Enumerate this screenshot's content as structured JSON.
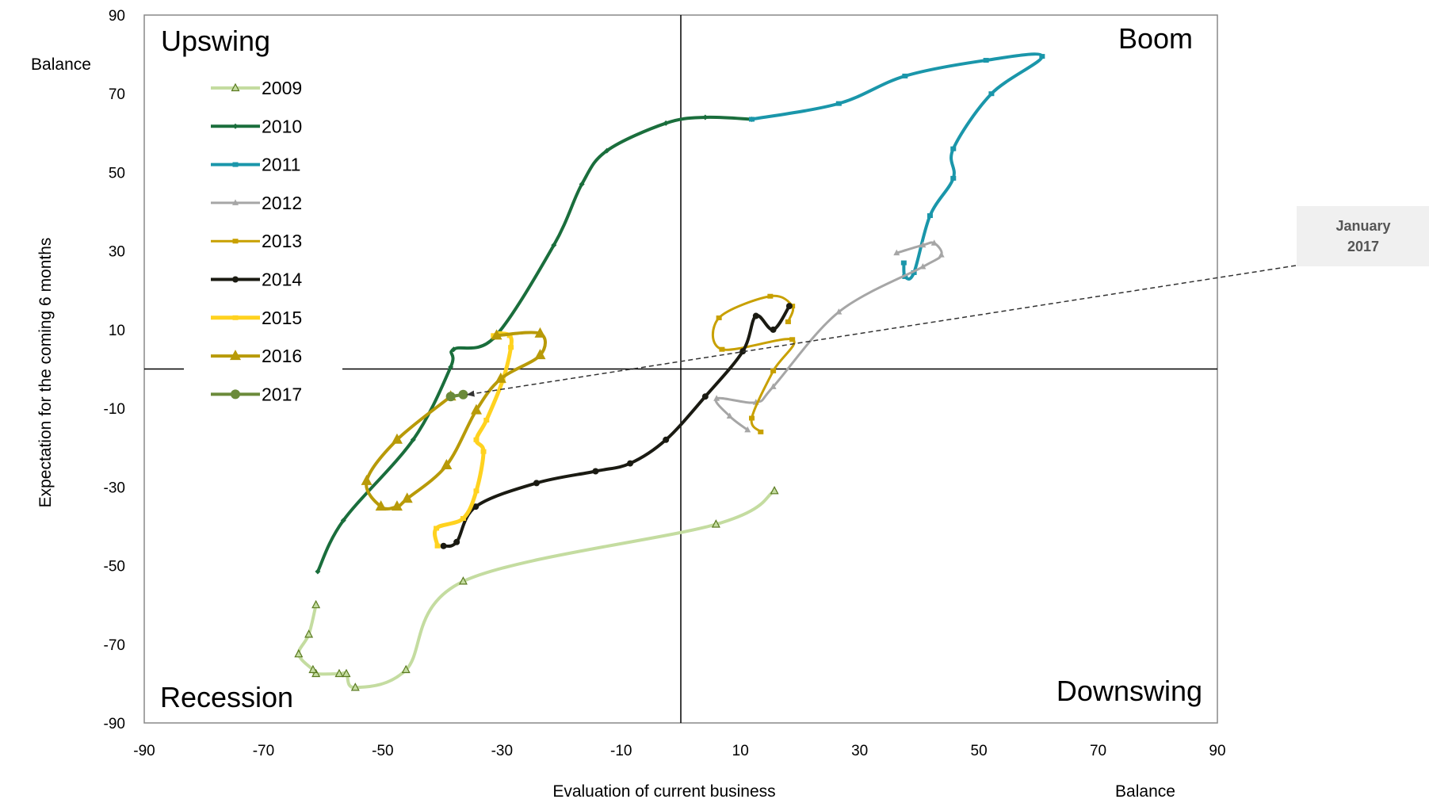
{
  "chart_data": {
    "type": "line",
    "xlabel": "Evaluation  of current business",
    "xunit": "Balance",
    "ylabel": "Expectation for the coming 6 months",
    "yunit": "Balance",
    "xlim": [
      -90,
      90
    ],
    "ylim": [
      -90,
      90
    ],
    "xticks": [
      -90,
      -70,
      -50,
      -30,
      -10,
      10,
      30,
      50,
      70,
      90
    ],
    "yticks": [
      90,
      70,
      50,
      30,
      10,
      -10,
      -30,
      -50,
      -70,
      -90
    ],
    "grid": false,
    "legend_position": "top-left",
    "quadrants": {
      "top_left": "Upswing",
      "top_right": "Boom",
      "bottom_left": "Recession",
      "bottom_right": "Downswing"
    },
    "annotation": {
      "line1": "January",
      "line2": "2017",
      "target": [
        -36.5,
        -6.5
      ]
    },
    "series": [
      {
        "name": "2009",
        "color": "#c4dca0",
        "marker": "triangle-open",
        "points": [
          [
            15.7,
            -31
          ],
          [
            5.9,
            -39.5
          ],
          [
            -36.5,
            -54
          ],
          [
            -46.1,
            -76.5
          ],
          [
            -54.6,
            -81
          ],
          [
            -56.1,
            -77.5
          ],
          [
            -57.3,
            -77.5
          ],
          [
            -61.2,
            -77.5
          ],
          [
            -61.7,
            -76.5
          ],
          [
            -64.1,
            -72.5
          ],
          [
            -62.4,
            -67.5
          ],
          [
            -61.2,
            -60
          ]
        ]
      },
      {
        "name": "2010",
        "color": "#1a6e3c",
        "marker": "diamond",
        "points": [
          [
            -60.9,
            -51.5
          ],
          [
            -56.6,
            -38.5
          ],
          [
            -44.9,
            -18
          ],
          [
            -38.6,
            0.5
          ],
          [
            -38.1,
            5
          ],
          [
            -31.3,
            8
          ],
          [
            -21.3,
            31.5
          ],
          [
            -16.6,
            47
          ],
          [
            -12.4,
            55.5
          ],
          [
            -2.5,
            62.5
          ],
          [
            4.1,
            64
          ],
          [
            11.9,
            63.5
          ]
        ]
      },
      {
        "name": "2011",
        "color": "#1a96aa",
        "marker": "square",
        "points": [
          [
            11.9,
            63.5
          ],
          [
            26.5,
            67.5
          ],
          [
            37.6,
            74.5
          ],
          [
            51.2,
            78.5
          ],
          [
            60.6,
            79.5
          ],
          [
            52.1,
            70
          ],
          [
            45.7,
            56
          ],
          [
            45.7,
            48.5
          ],
          [
            41.8,
            39
          ],
          [
            39.1,
            24.5
          ],
          [
            37.6,
            23.5
          ],
          [
            37.4,
            27
          ]
        ]
      },
      {
        "name": "2012",
        "color": "#a6a6a6",
        "marker": "triangle",
        "points": [
          [
            36.2,
            29.5
          ],
          [
            40.6,
            31.5
          ],
          [
            42.5,
            32
          ],
          [
            43.7,
            29
          ],
          [
            40.6,
            26
          ],
          [
            26.5,
            14.5
          ],
          [
            15.5,
            -4.5
          ],
          [
            12.6,
            -8.5
          ],
          [
            6.0,
            -7.5
          ],
          [
            8.2,
            -12
          ],
          [
            11.2,
            -15.5
          ]
        ]
      },
      {
        "name": "2013",
        "color": "#c8a000",
        "marker": "square",
        "points": [
          [
            13.4,
            -16
          ],
          [
            11.9,
            -12.5
          ],
          [
            15.5,
            -0.5
          ],
          [
            18.7,
            7.5
          ],
          [
            6.9,
            5
          ],
          [
            6.4,
            13
          ],
          [
            15.0,
            18.5
          ],
          [
            18.7,
            16
          ],
          [
            18.0,
            12
          ]
        ]
      },
      {
        "name": "2014",
        "color": "#1a1a12",
        "marker": "circle",
        "points": [
          [
            18.2,
            16
          ],
          [
            15.5,
            10
          ],
          [
            12.6,
            13.5
          ],
          [
            10.4,
            4.5
          ],
          [
            4.1,
            -7
          ],
          [
            -2.5,
            -18
          ],
          [
            -8.5,
            -24
          ],
          [
            -14.3,
            -26
          ],
          [
            -24.2,
            -29
          ],
          [
            -34.4,
            -35
          ],
          [
            -37.6,
            -44
          ],
          [
            -39.8,
            -45
          ]
        ]
      },
      {
        "name": "2015",
        "color": "#ffd21f",
        "marker": "square",
        "points": [
          [
            -40.8,
            -45
          ],
          [
            -41.0,
            -40.5
          ],
          [
            -36.5,
            -38
          ],
          [
            -34.3,
            -31
          ],
          [
            -33.1,
            -21
          ],
          [
            -34.3,
            -18
          ],
          [
            -32.6,
            -13
          ],
          [
            -29.9,
            -3
          ],
          [
            -28.5,
            5.5
          ],
          [
            -28.7,
            8.5
          ],
          [
            -30.4,
            9
          ],
          [
            -31.4,
            8.5
          ]
        ]
      },
      {
        "name": "2016",
        "color": "#b89a08",
        "marker": "triangle-large",
        "points": [
          [
            -30.9,
            8.5
          ],
          [
            -23.6,
            9
          ],
          [
            -23.6,
            3.5
          ],
          [
            -30.2,
            -2.5
          ],
          [
            -34.3,
            -10.5
          ],
          [
            -39.3,
            -24.5
          ],
          [
            -45.9,
            -33
          ],
          [
            -47.6,
            -35
          ],
          [
            -50.3,
            -35
          ],
          [
            -52.7,
            -28.5
          ],
          [
            -47.6,
            -18
          ],
          [
            -38.6,
            -7
          ]
        ]
      },
      {
        "name": "2017",
        "color": "#6b8a3a",
        "marker": "circle-large",
        "points": [
          [
            -38.6,
            -7
          ],
          [
            -36.5,
            -6.5
          ]
        ]
      }
    ]
  }
}
